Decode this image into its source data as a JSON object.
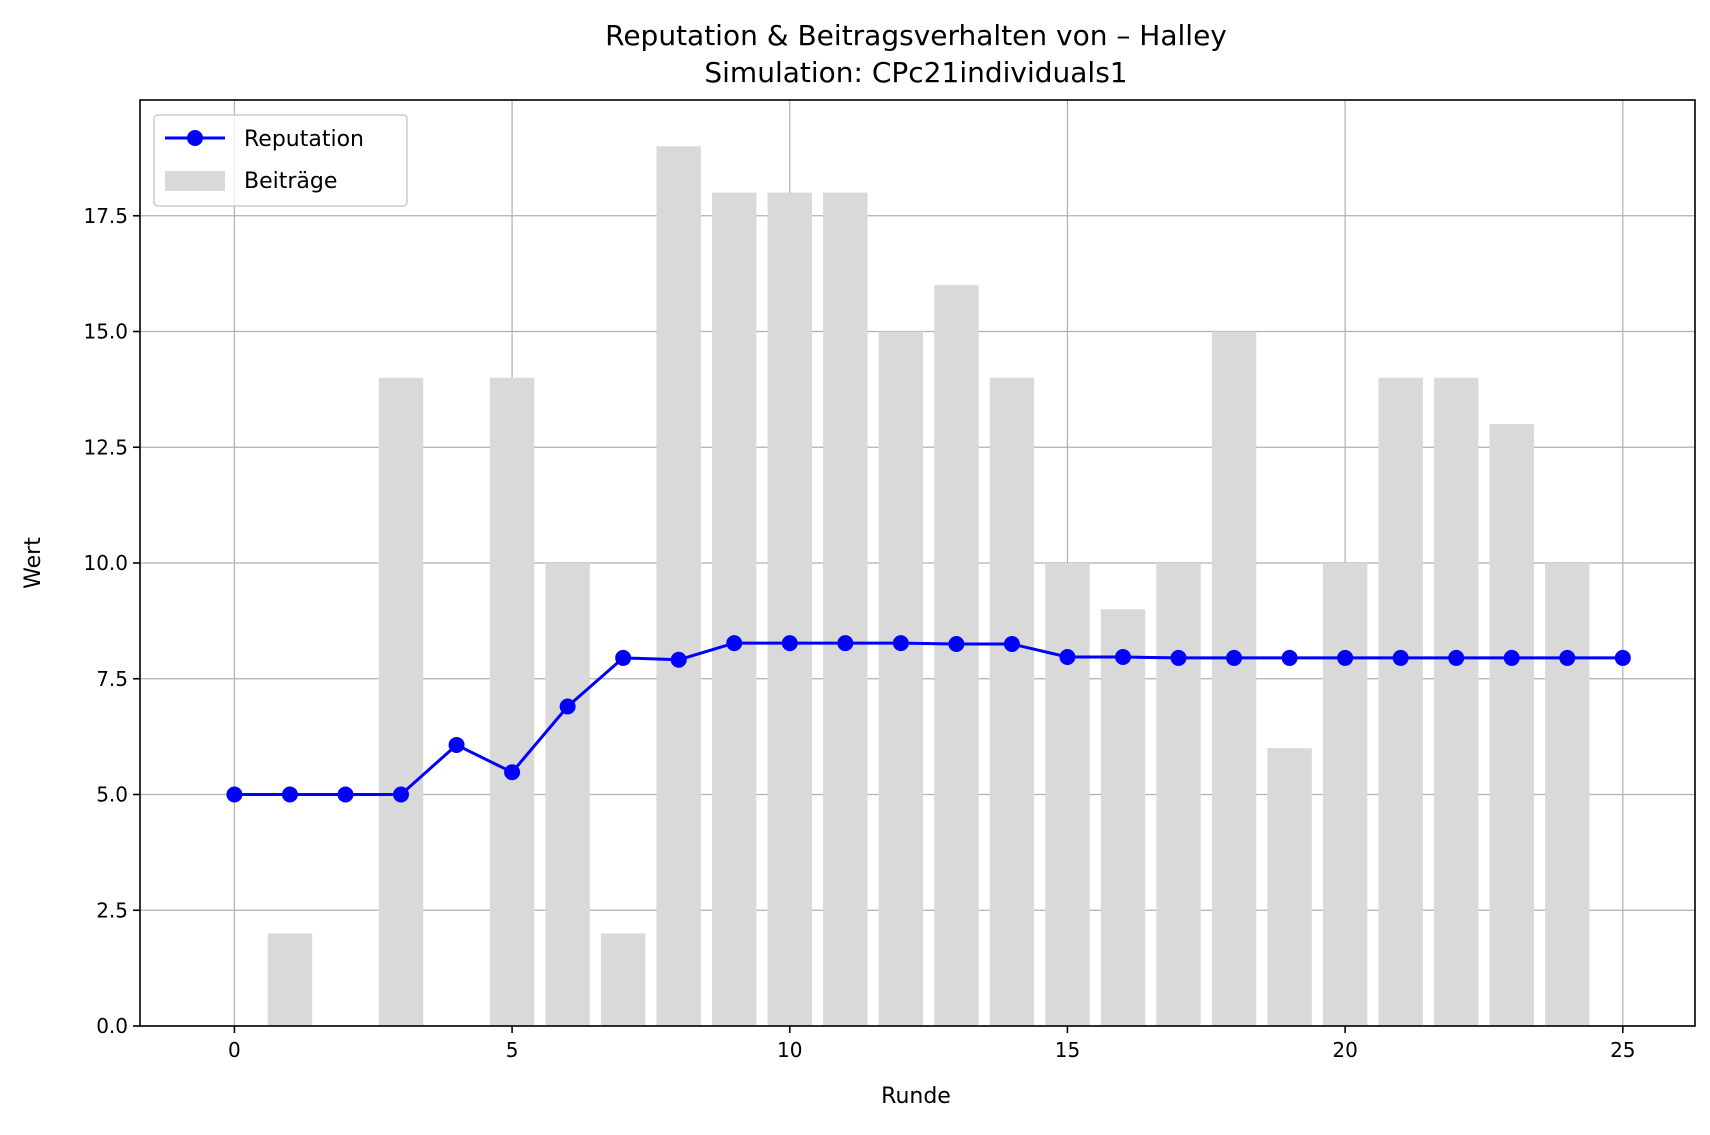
{
  "title": "Reputation & Beitragsverhalten von – Halley",
  "subtitle": "Simulation: CPc21individuals1",
  "chart_data": {
    "type": "bar+line",
    "title": "Reputation & Beitragsverhalten von – Halley",
    "subtitle": "Simulation: CPc21individuals1",
    "xlabel": "Runde",
    "ylabel": "Wert",
    "xlim": [
      -1.7,
      26.3
    ],
    "ylim": [
      0,
      20
    ],
    "xticks": [
      0,
      5,
      10,
      15,
      20,
      25
    ],
    "yticks": [
      0.0,
      2.5,
      5.0,
      7.5,
      10.0,
      12.5,
      15.0,
      17.5
    ],
    "xtick_labels": [
      "0",
      "5",
      "10",
      "15",
      "20",
      "25"
    ],
    "ytick_labels": [
      "0.0",
      "2.5",
      "5.0",
      "7.5",
      "10.0",
      "12.5",
      "15.0",
      "17.5"
    ],
    "grid": true,
    "legend_position": "top-left",
    "bars": {
      "name": "Beiträge",
      "color": "#d9d9d9",
      "x": [
        1,
        3,
        5,
        6,
        7,
        8,
        9,
        10,
        11,
        12,
        13,
        14,
        15,
        16,
        17,
        18,
        19,
        20,
        21,
        22,
        23,
        24
      ],
      "values": [
        2,
        14,
        14,
        10,
        2,
        19,
        18,
        18,
        18,
        15,
        16,
        14,
        10,
        9,
        10,
        15,
        6,
        10,
        14,
        14,
        13,
        10
      ]
    },
    "line": {
      "name": "Reputation",
      "color": "#0000ff",
      "x": [
        0,
        1,
        2,
        3,
        4,
        5,
        6,
        7,
        8,
        9,
        10,
        11,
        12,
        13,
        14,
        15,
        16,
        17,
        18,
        19,
        20,
        21,
        22,
        23,
        24,
        25
      ],
      "values": [
        5.0,
        5.0,
        5.0,
        5.0,
        6.07,
        5.48,
        6.9,
        7.95,
        7.91,
        8.27,
        8.27,
        8.27,
        8.27,
        8.25,
        8.25,
        7.97,
        7.97,
        7.95,
        7.95,
        7.95,
        7.95,
        7.95,
        7.95,
        7.95,
        7.95,
        7.95
      ]
    }
  }
}
